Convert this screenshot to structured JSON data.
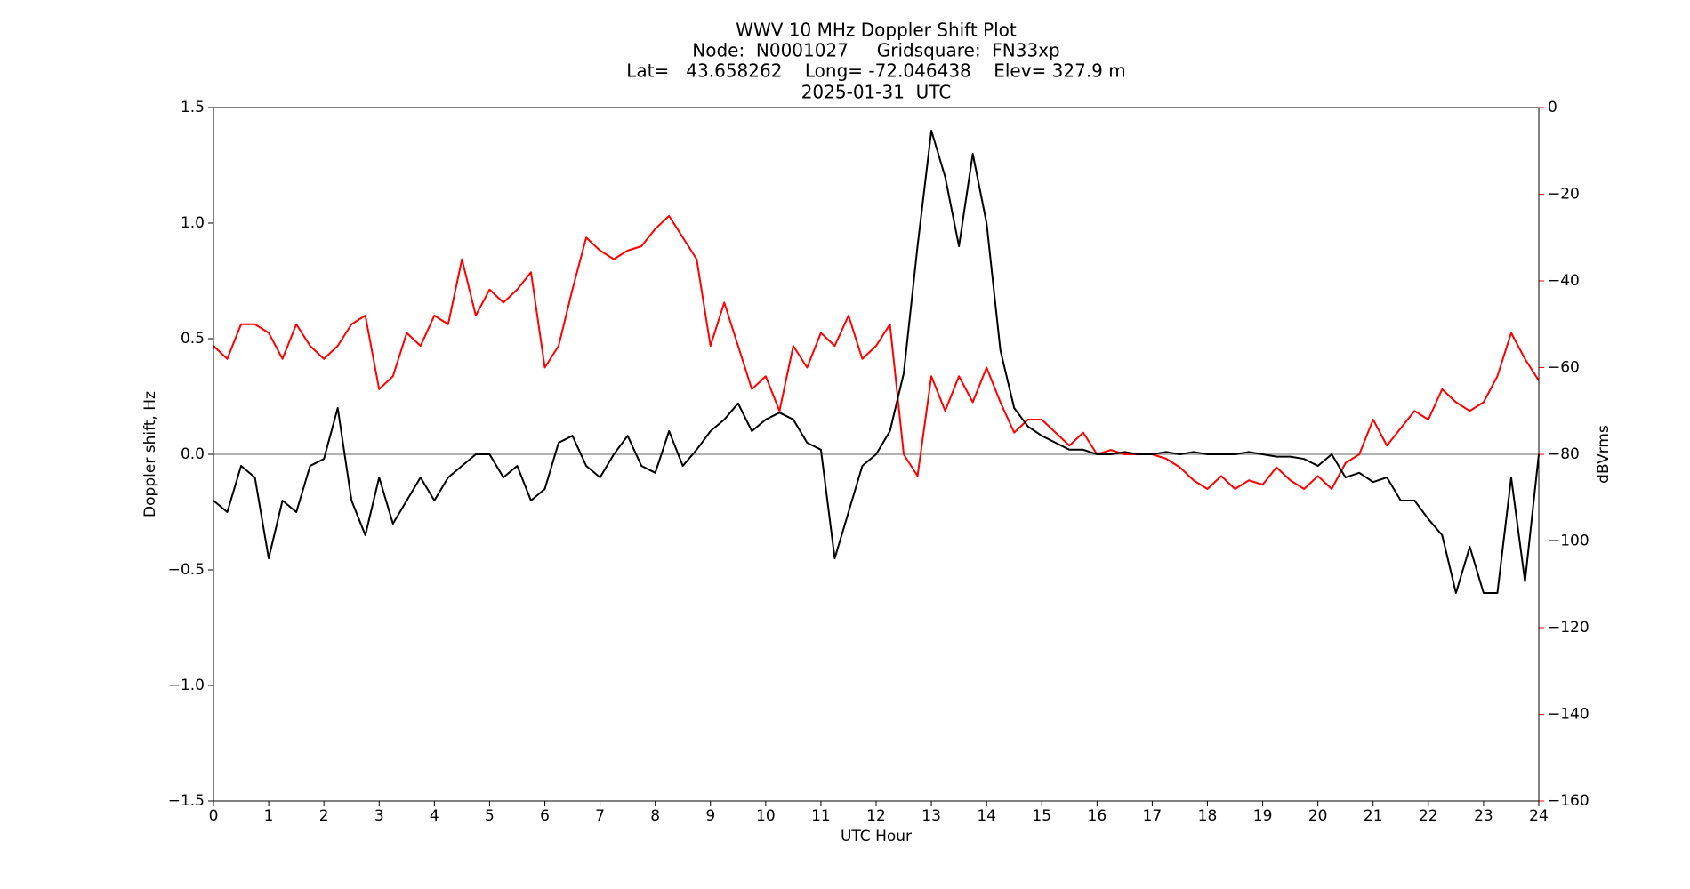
{
  "chart_data": {
    "type": "line",
    "title_lines": [
      "WWV 10 MHz Doppler Shift Plot",
      "Node:  N0001027     Gridsquare:  FN33xp",
      "Lat=   43.658262    Long= -72.046438    Elev= 327.9 m",
      "2025-01-31  UTC"
    ],
    "xlabel": "UTC Hour",
    "ylabel": "Doppler shift, Hz",
    "y2label": "dBVrms",
    "x": [
      0,
      0.25,
      0.5,
      0.75,
      1,
      1.25,
      1.5,
      1.75,
      2,
      2.25,
      2.5,
      2.75,
      3,
      3.25,
      3.5,
      3.75,
      4,
      4.25,
      4.5,
      4.75,
      5,
      5.25,
      5.5,
      5.75,
      6,
      6.25,
      6.5,
      6.75,
      7,
      7.25,
      7.5,
      7.75,
      8,
      8.25,
      8.5,
      8.75,
      9,
      9.25,
      9.5,
      9.75,
      10,
      10.25,
      10.5,
      10.75,
      11,
      11.25,
      11.5,
      11.75,
      12,
      12.25,
      12.5,
      12.75,
      13,
      13.25,
      13.5,
      13.75,
      14,
      14.25,
      14.5,
      14.75,
      15,
      15.25,
      15.5,
      15.75,
      16,
      16.25,
      16.5,
      16.75,
      17,
      17.25,
      17.5,
      17.75,
      18,
      18.25,
      18.5,
      18.75,
      19,
      19.25,
      19.5,
      19.75,
      20,
      20.25,
      20.5,
      20.75,
      21,
      21.25,
      21.5,
      21.75,
      22,
      22.25,
      22.5,
      22.75,
      23,
      23.25,
      23.5,
      23.75,
      24
    ],
    "series": [
      {
        "name": "Doppler shift",
        "color": "#000000",
        "values": [
          -0.2,
          -0.25,
          -0.05,
          -0.1,
          -0.45,
          -0.2,
          -0.25,
          -0.05,
          -0.02,
          0.2,
          -0.2,
          -0.35,
          -0.1,
          -0.3,
          -0.2,
          -0.1,
          -0.2,
          -0.1,
          -0.05,
          0,
          0,
          -0.1,
          -0.05,
          -0.2,
          -0.15,
          0.05,
          0.08,
          -0.05,
          -0.1,
          0,
          0.08,
          -0.05,
          -0.08,
          0.1,
          -0.05,
          0.02,
          0.1,
          0.15,
          0.22,
          0.1,
          0.15,
          0.18,
          0.15,
          0.05,
          0.02,
          -0.45,
          -0.25,
          -0.05,
          0,
          0.1,
          0.35,
          0.9,
          1.4,
          1.2,
          0.9,
          1.3,
          1.0,
          0.45,
          0.2,
          0.12,
          0.08,
          0.05,
          0.02,
          0.02,
          0,
          0,
          0.01,
          0,
          0,
          0.01,
          0,
          0.01,
          0,
          0,
          0,
          0.01,
          0,
          -0.01,
          -0.01,
          -0.02,
          -0.05,
          0,
          -0.1,
          -0.08,
          -0.12,
          -0.1,
          -0.2,
          -0.2,
          -0.28,
          -0.35,
          -0.6,
          -0.4,
          -0.6,
          -0.6,
          -0.1,
          -0.55,
          0
        ]
      },
      {
        "name": "dBVrms",
        "color": "#ff0000",
        "axis": "y2",
        "values": [
          -55,
          -58,
          -50,
          -50,
          -52,
          -58,
          -50,
          -55,
          -58,
          -55,
          -50,
          -48,
          -65,
          -62,
          -52,
          -55,
          -48,
          -50,
          -35,
          -48,
          -42,
          -45,
          -42,
          -38,
          -60,
          -55,
          -42,
          -30,
          -33,
          -35,
          -33,
          -32,
          -28,
          -25,
          -30,
          -35,
          -55,
          -45,
          -55,
          -65,
          -62,
          -70,
          -55,
          -60,
          -52,
          -55,
          -48,
          -58,
          -55,
          -50,
          -80,
          -85,
          -62,
          -70,
          -62,
          -68,
          -60,
          -68,
          -75,
          -72,
          -72,
          -75,
          -78,
          -75,
          -80,
          -79,
          -80,
          -80,
          -80,
          -81,
          -83,
          -86,
          -88,
          -85,
          -88,
          -86,
          -87,
          -83,
          -86,
          -88,
          -85,
          -88,
          -82,
          -80,
          -72,
          -78,
          -74,
          -70,
          -72,
          -65,
          -68,
          -70,
          -68,
          -62,
          -52,
          -58,
          -63
        ]
      }
    ],
    "xlim": [
      0,
      24
    ],
    "xticks": [
      0,
      1,
      2,
      3,
      4,
      5,
      6,
      7,
      8,
      9,
      10,
      11,
      12,
      13,
      14,
      15,
      16,
      17,
      18,
      19,
      20,
      21,
      22,
      23,
      24
    ],
    "ylim": [
      -1.5,
      1.5
    ],
    "yticks": [
      {
        "value": -1.5,
        "label": "−1.5"
      },
      {
        "value": -1.0,
        "label": "−1.0"
      },
      {
        "value": -0.5,
        "label": "−0.5"
      },
      {
        "value": 0,
        "label": "0.0"
      },
      {
        "value": 0.5,
        "label": "0.5"
      },
      {
        "value": 1.0,
        "label": "1.0"
      },
      {
        "value": 1.5,
        "label": "1.5"
      }
    ],
    "y2lim": [
      -160,
      0
    ],
    "y2ticks": [
      {
        "value": -160,
        "label": "−160"
      },
      {
        "value": -140,
        "label": "−140"
      },
      {
        "value": -120,
        "label": "−120"
      },
      {
        "value": -100,
        "label": "−100"
      },
      {
        "value": -80,
        "label": "−80"
      },
      {
        "value": -60,
        "label": "−60"
      },
      {
        "value": -40,
        "label": "−40"
      },
      {
        "value": -20,
        "label": "−20"
      },
      0
    ],
    "y2color": "#ff0000",
    "reference_line": 0,
    "reference_color": "#999999"
  }
}
